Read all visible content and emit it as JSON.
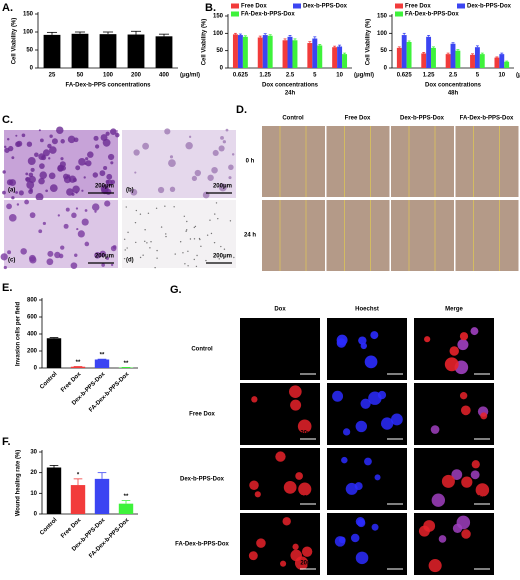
{
  "chart_data": [
    {
      "type": "bar",
      "panel": "A.",
      "categories": [
        "25",
        "50",
        "100",
        "200",
        "400"
      ],
      "x_unit": "(μg/ml)",
      "values": [
        92,
        95,
        94,
        93,
        88
      ],
      "errors": [
        7,
        5,
        6,
        9,
        6
      ],
      "color": "#000000",
      "ylim": [
        0,
        150
      ],
      "yticks": [
        0,
        50,
        100,
        150
      ],
      "y_label": "Cell Viability (%)",
      "x_label": "FA-Dex-b-PPS concentrations"
    },
    {
      "type": "bar",
      "panel": "B.",
      "categories": [
        "0.625",
        "1.25",
        "2.5",
        "5",
        "10"
      ],
      "x_unit": "(μg/ml)",
      "series": [
        {
          "name": "Free Dox",
          "color": "#f23b3b",
          "values": [
            97,
            88,
            80,
            72,
            60
          ],
          "errors": [
            3,
            4,
            4,
            4,
            3
          ]
        },
        {
          "name": "Dex-b-PPS-Dox",
          "color": "#3b45f2",
          "values": [
            95,
            95,
            90,
            85,
            62
          ],
          "errors": [
            3,
            4,
            4,
            5,
            4
          ]
        },
        {
          "name": "FA-Dex-b-PPS-Dox",
          "color": "#3ef23b",
          "values": [
            90,
            93,
            80,
            65,
            40
          ],
          "errors": [
            3,
            3,
            4,
            3,
            3
          ]
        }
      ],
      "legend": "top-left",
      "ylim": [
        0,
        150
      ],
      "yticks": [
        0,
        50,
        100,
        150
      ],
      "y_label": "Cell Viability (%)",
      "x_label": "Dox concentrations",
      "subtitle": "24h"
    },
    {
      "type": "bar",
      "categories": [
        "0.625",
        "1.25",
        "2.5",
        "5",
        "10"
      ],
      "x_unit": "(μg/ml)",
      "series": [
        {
          "name": "Free Dox",
          "color": "#f23b3b",
          "values": [
            58,
            42,
            40,
            38,
            30
          ],
          "errors": [
            3,
            3,
            3,
            3,
            2
          ]
        },
        {
          "name": "Dex-b-PPS-Dox",
          "color": "#3b45f2",
          "values": [
            95,
            90,
            70,
            60,
            40
          ],
          "errors": [
            5,
            4,
            3,
            4,
            3
          ]
        },
        {
          "name": "FA-Dex-b-PPS-Dox",
          "color": "#3ef23b",
          "values": [
            75,
            58,
            50,
            40,
            18
          ],
          "errors": [
            3,
            3,
            3,
            3,
            2
          ]
        }
      ],
      "legend": "top-left",
      "ylim": [
        0,
        150
      ],
      "yticks": [
        0,
        50,
        100,
        150
      ],
      "y_label": "Cell Viability (%)",
      "x_label": "Dox concentrations",
      "subtitle": "48h"
    },
    {
      "type": "bar",
      "panel": "E.",
      "categories": [
        "Control",
        "Free Dox",
        "Dex-b-PPS-Dox",
        "FA-Dex-b-PPS-Dox"
      ],
      "values": [
        350,
        15,
        100,
        5
      ],
      "errors": [
        8,
        3,
        4,
        2
      ],
      "colors": [
        "#000000",
        "#f23b3b",
        "#3b45f2",
        "#3ef23b"
      ],
      "bar_labels": [
        null,
        "**",
        "**",
        "**"
      ],
      "x_label_rotation": 45,
      "ylim": [
        0,
        800
      ],
      "yticks": [
        0,
        200,
        400,
        600,
        800
      ],
      "y_label": "Invasion cells per field"
    },
    {
      "type": "bar",
      "panel": "F.",
      "categories": [
        "Control",
        "Free Dox",
        "Dex-b-PPS-Dox",
        "FA-Dex-b-PPS-Dox"
      ],
      "values": [
        22.5,
        14,
        17,
        5
      ],
      "errors": [
        1,
        3,
        3,
        1.5
      ],
      "colors": [
        "#000000",
        "#f23b3b",
        "#3b45f2",
        "#3ef23b"
      ],
      "bar_labels": [
        null,
        "*",
        null,
        "**"
      ],
      "x_label_rotation": 45,
      "ylim": [
        0,
        30
      ],
      "yticks": [
        0,
        10,
        20,
        30
      ],
      "y_label": "Wound healing rate (%)"
    }
  ],
  "panel_c": {
    "panel": "C.",
    "labels": [
      "(a)",
      "(b)",
      "(c)",
      "(d)"
    ],
    "scale_bar": "200μm"
  },
  "panel_d": {
    "panel": "D.",
    "columns": [
      "Control",
      "Free Dox",
      "Dex-b-PPS-Dox",
      "FA-Dex-b-PPS-Dox"
    ],
    "rows": [
      "0 h",
      "24 h"
    ]
  },
  "panel_g": {
    "panel": "G.",
    "columns": [
      "Dox",
      "Hoechst",
      "Merge"
    ],
    "rows": [
      "Control",
      "Free Dox",
      "Dex-b-PPS-Dox",
      "FA-Dex-b-PPS-Dox"
    ],
    "scale_bar": "20μm"
  }
}
